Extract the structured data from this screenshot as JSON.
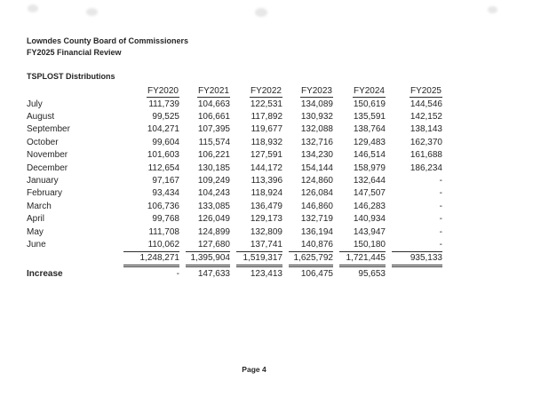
{
  "page": {
    "org_title": "Lowndes County Board of Commissioners",
    "report_title": "FY2025 Financial Review",
    "section_title": "TSPLOST Distributions",
    "page_number": "Page 4"
  },
  "table": {
    "columns": [
      "FY2020",
      "FY2021",
      "FY2022",
      "FY2023",
      "FY2024",
      "FY2025"
    ],
    "months": [
      {
        "label": "July",
        "values": [
          "111,739",
          "104,663",
          "122,531",
          "134,089",
          "150,619",
          "144,546"
        ]
      },
      {
        "label": "August",
        "values": [
          "99,525",
          "106,661",
          "117,892",
          "130,932",
          "135,591",
          "142,152"
        ]
      },
      {
        "label": "September",
        "values": [
          "104,271",
          "107,395",
          "119,677",
          "132,088",
          "138,764",
          "138,143"
        ]
      },
      {
        "label": "October",
        "values": [
          "99,604",
          "115,574",
          "118,932",
          "132,716",
          "129,483",
          "162,370"
        ]
      },
      {
        "label": "November",
        "values": [
          "101,603",
          "106,221",
          "127,591",
          "134,230",
          "146,514",
          "161,688"
        ]
      },
      {
        "label": "December",
        "values": [
          "112,654",
          "130,185",
          "144,172",
          "154,144",
          "158,979",
          "186,234"
        ]
      },
      {
        "label": "January",
        "values": [
          "97,167",
          "109,249",
          "113,396",
          "124,860",
          "132,644",
          "-"
        ]
      },
      {
        "label": "February",
        "values": [
          "93,434",
          "104,243",
          "118,924",
          "126,084",
          "147,507",
          "-"
        ]
      },
      {
        "label": "March",
        "values": [
          "106,736",
          "133,085",
          "136,479",
          "146,860",
          "146,283",
          "-"
        ]
      },
      {
        "label": "April",
        "values": [
          "99,768",
          "126,049",
          "129,173",
          "132,719",
          "140,934",
          "-"
        ]
      },
      {
        "label": "May",
        "values": [
          "111,708",
          "124,899",
          "132,809",
          "136,194",
          "143,947",
          "-"
        ]
      },
      {
        "label": "June",
        "values": [
          "110,062",
          "127,680",
          "137,741",
          "140,876",
          "150,180",
          "-"
        ]
      }
    ],
    "totals": {
      "label": "",
      "values": [
        "1,248,271",
        "1,395,904",
        "1,519,317",
        "1,625,792",
        "1,721,445",
        "935,133"
      ]
    },
    "increase": {
      "label": "Increase",
      "values": [
        "-",
        "147,633",
        "123,413",
        "106,475",
        "95,653",
        ""
      ]
    }
  }
}
